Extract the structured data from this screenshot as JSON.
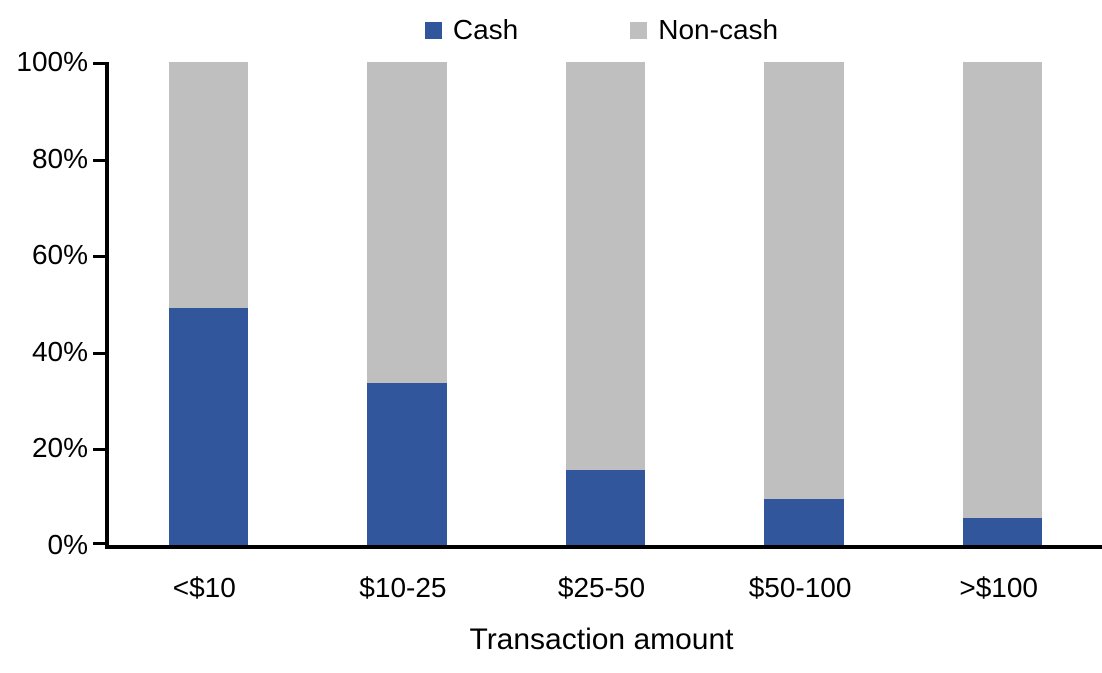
{
  "chart_data": {
    "type": "bar",
    "stacked": true,
    "percent_stacked": true,
    "title": "",
    "xlabel": "Transaction amount",
    "ylabel": "",
    "categories": [
      "<$10",
      "$10-25",
      "$25-50",
      "$50-100",
      ">$100"
    ],
    "series": [
      {
        "name": "Cash",
        "color": "#31569B",
        "values": [
          49,
          33.5,
          15.5,
          9.5,
          5.5
        ]
      },
      {
        "name": "Non-cash",
        "color": "#BFBFBF",
        "values": [
          51,
          66.5,
          84.5,
          90.5,
          94.5
        ]
      }
    ],
    "ylim": [
      0,
      100
    ],
    "ytick_values": [
      0,
      20,
      40,
      60,
      80,
      100
    ],
    "ytick_labels": [
      "0%",
      "20%",
      "40%",
      "60%",
      "80%",
      "100%"
    ],
    "legend_position": "top",
    "grid": false,
    "axis_color": "#000000",
    "background_color": "#FFFFFF"
  }
}
